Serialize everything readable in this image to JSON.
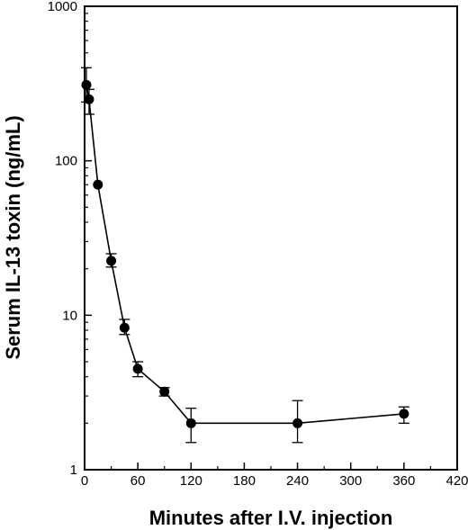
{
  "chart_data": {
    "type": "line",
    "title": "",
    "xlabel": "Minutes after I.V. injection",
    "ylabel": "Serum IL-13 toxin (ng/mL)",
    "xlim": [
      0,
      420
    ],
    "ylim": [
      1,
      1000
    ],
    "yscale": "log",
    "grid": false,
    "x_ticks": [
      0,
      60,
      120,
      180,
      240,
      300,
      360,
      420
    ],
    "x_tick_labels": [
      "0",
      "60",
      "120",
      "180",
      "240",
      "300",
      "360",
      "420"
    ],
    "y_ticks": [
      1,
      10,
      100,
      1000
    ],
    "y_tick_labels": [
      "1",
      "10",
      "100",
      "1000"
    ],
    "series": [
      {
        "x": [
          2,
          5,
          15,
          30,
          45,
          60,
          90,
          120,
          240,
          360
        ],
        "y": [
          310,
          250,
          70,
          22.5,
          8.3,
          4.5,
          3.2,
          2.0,
          2.0,
          2.3
        ],
        "err_low": [
          240,
          200,
          70,
          20.5,
          7.5,
          4.0,
          3.0,
          1.5,
          1.5,
          2.0
        ],
        "err_high": [
          400,
          290,
          70,
          25,
          9.4,
          5.0,
          3.4,
          2.5,
          2.8,
          2.55
        ]
      }
    ]
  }
}
